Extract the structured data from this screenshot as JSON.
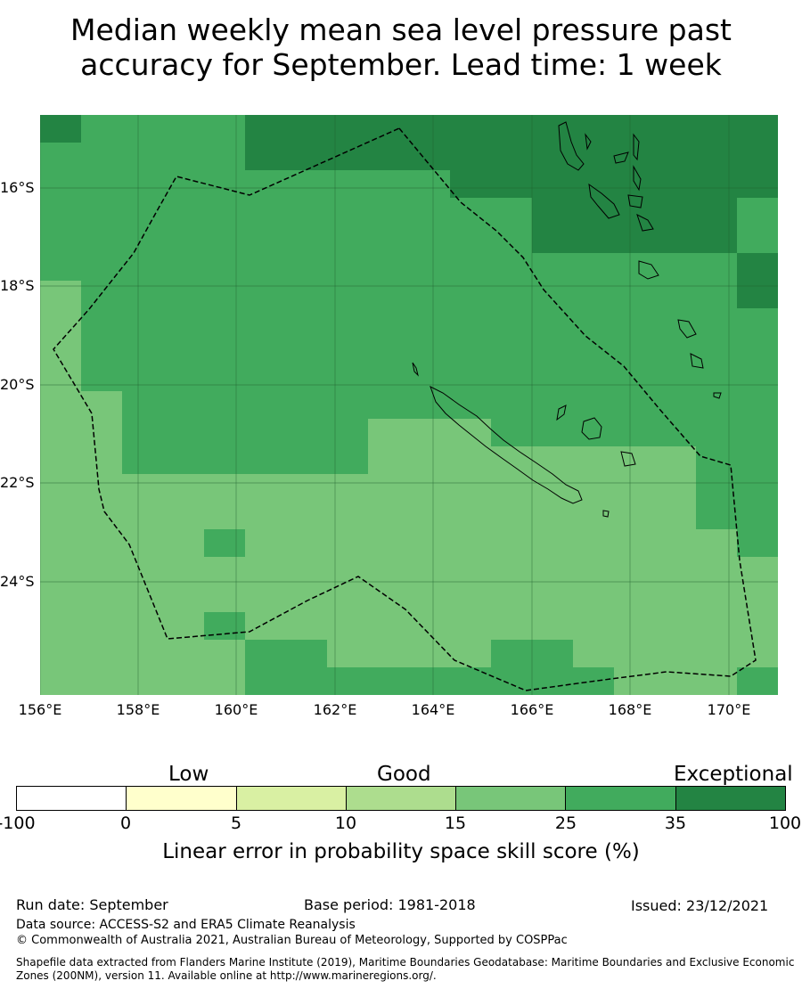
{
  "title": {
    "line1": "Median weekly mean sea level pressure past",
    "line2": "accuracy for September. Lead time: 1 week"
  },
  "map": {
    "lat_labels": [
      "16°S",
      "18°S",
      "20°S",
      "22°S",
      "24°S"
    ],
    "lon_labels": [
      "156°E",
      "158°E",
      "160°E",
      "162°E",
      "164°E",
      "166°E",
      "168°E",
      "170°E"
    ],
    "colors": {
      "band_15_25": "#78c679",
      "band_25_35": "#41ab5d",
      "band_35_100": "#238443",
      "grid": "#1f5f2f",
      "coast": "#000000",
      "eez": "#000000"
    },
    "grid_lon": [
      156,
      170.75,
      0.833
    ],
    "grid_lat": [
      -14.6,
      -26.4,
      0.555
    ],
    "icons": [
      "new-caledonia-coast",
      "vanuatu-coast",
      "eez-boundary"
    ]
  },
  "legend": {
    "categories": [
      "Low",
      "Good",
      "Exceptional"
    ],
    "ticks": [
      "-100",
      "0",
      "5",
      "10",
      "15",
      "25",
      "35",
      "100"
    ],
    "colors": [
      "#ffffff",
      "#ffffcc",
      "#d9f0a3",
      "#addd8e",
      "#78c679",
      "#41ab5d",
      "#238443"
    ],
    "label": "Linear error in probability space skill score (%)"
  },
  "footer": {
    "run_date": "Run date: September",
    "base_period": "Base period: 1981-2018",
    "issued": "Issued: 23/12/2021",
    "data_source": "Data source: ACCESS-S2 and ERA5 Climate Reanalysis",
    "copyright": "© Commonwealth of Australia 2021, Australian Bureau of Meteorology, Supported by COSPPac",
    "shapefile_line1": "Shapefile data extracted from Flanders Marine Institute (2019), Maritime Boundaries Geodatabase: Maritime Boundaries and Exclusive Economic",
    "shapefile_line2": "Zones (200NM), version 11. Available online at http://www.marineregions.org/."
  }
}
